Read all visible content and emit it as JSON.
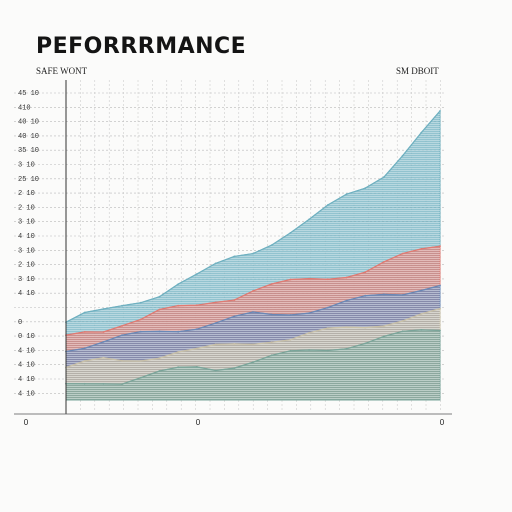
{
  "chart": {
    "title": "PEFORRRMANCE",
    "subtitle_left": "SAFE WONT",
    "subtitle_right": "SM DBOIT"
  },
  "chart_data": {
    "type": "area",
    "title": "PEFORRRMANCE",
    "xlabel": "",
    "ylabel": "",
    "x_tick_labels": [
      "0",
      "0",
      "0"
    ],
    "y_tick_labels": [
      "45 10",
      "410",
      "40 10",
      "40 10",
      "35 10",
      "3 10",
      "25 10",
      "2 10",
      "2 10",
      "3 10",
      "4 10",
      "3 10",
      "2 10",
      "3 10",
      "4 10",
      "",
      "0",
      "0 10",
      "4 10",
      "4 10",
      "4 10",
      "4 10"
    ],
    "ylim": [
      0,
      100
    ],
    "grid": true,
    "series": [
      {
        "color": "#6fb0c0",
        "x": [
          0,
          5,
          10,
          15,
          20,
          25,
          30,
          35,
          40,
          45,
          50,
          55,
          60,
          65,
          70,
          75,
          80,
          85,
          90,
          95,
          100
        ],
        "values": [
          24,
          26,
          27,
          29,
          31,
          33,
          36,
          38,
          41,
          44,
          46,
          49,
          52,
          55,
          59,
          63,
          66,
          70,
          76,
          82,
          88
        ]
      },
      {
        "color": "#e07a72",
        "x": [
          0,
          5,
          10,
          15,
          20,
          25,
          30,
          35,
          40,
          45,
          50,
          55,
          60,
          65,
          70,
          75,
          80,
          85,
          90,
          95,
          100
        ],
        "values": [
          19,
          21,
          22,
          24,
          25,
          27,
          28,
          29,
          31,
          32,
          34,
          35,
          36,
          37,
          38,
          39,
          40,
          42,
          44,
          46,
          48
        ]
      },
      {
        "color": "#6a88b6",
        "x": [
          0,
          5,
          10,
          15,
          20,
          25,
          30,
          35,
          40,
          45,
          50,
          55,
          60,
          65,
          70,
          75,
          80,
          85,
          90,
          95,
          100
        ],
        "values": [
          16,
          17,
          18,
          19,
          20,
          21,
          22,
          23,
          24,
          25,
          26,
          26,
          27,
          28,
          29,
          30,
          31,
          32,
          33,
          35,
          36
        ]
      },
      {
        "color": "#c8c0a8",
        "x": [
          0,
          5,
          10,
          15,
          20,
          25,
          30,
          35,
          40,
          45,
          50,
          55,
          60,
          65,
          70,
          75,
          80,
          85,
          90,
          95,
          100
        ],
        "values": [
          10,
          11,
          12,
          12,
          13,
          14,
          15,
          15,
          16,
          17,
          18,
          19,
          19,
          20,
          21,
          22,
          23,
          24,
          25,
          26,
          27
        ]
      },
      {
        "color": "#7aa59a",
        "x": [
          0,
          5,
          10,
          15,
          20,
          25,
          30,
          35,
          40,
          45,
          50,
          55,
          60,
          65,
          70,
          75,
          80,
          85,
          90,
          95,
          100
        ],
        "values": [
          4,
          5,
          6,
          6,
          7,
          8,
          9,
          10,
          10,
          11,
          12,
          13,
          14,
          15,
          16,
          17,
          18,
          19,
          20,
          21,
          22
        ]
      }
    ]
  }
}
